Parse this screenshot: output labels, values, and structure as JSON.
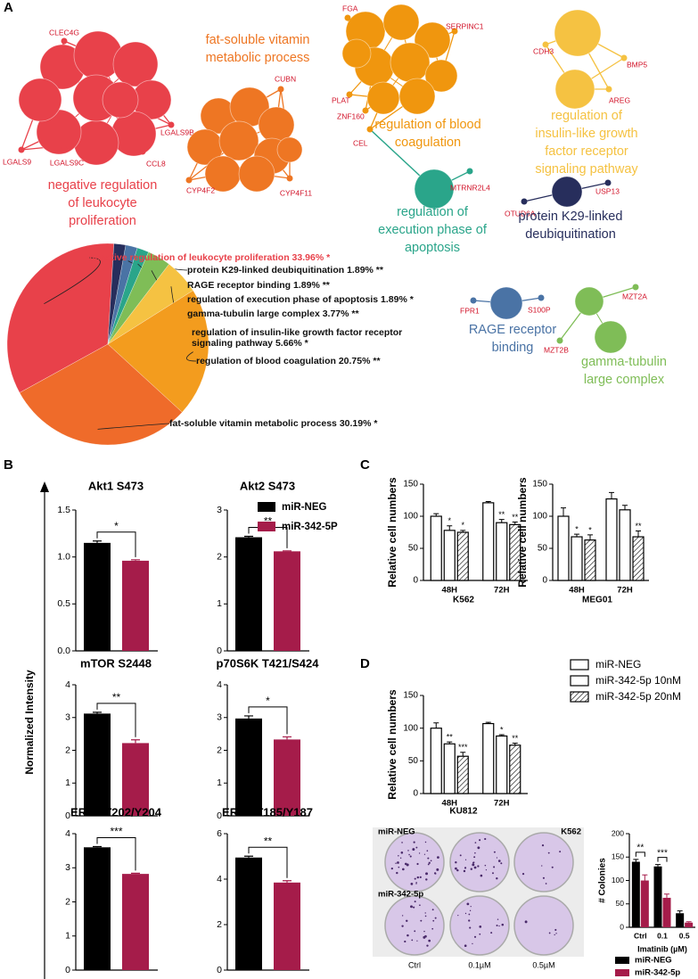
{
  "panel_labels": [
    "A",
    "B",
    "C",
    "D"
  ],
  "network": {
    "clusters": [
      {
        "label_lines": [
          "negative regulation",
          "of leukocyte",
          "proliferation"
        ],
        "color": "#e8414a",
        "genes": [
          "CLEC4G",
          "LGALS9",
          "LGALS9B",
          "LGALS9C",
          "CCL8"
        ]
      },
      {
        "label_lines": [
          "fat-soluble vitamin",
          "metabolic process"
        ],
        "color": "#ee7623",
        "genes": [
          "CUBN",
          "CYP4F2",
          "CYP4F11"
        ]
      },
      {
        "label_lines": [
          "regulation of blood",
          "coagulation"
        ],
        "color": "#f0960e",
        "genes": [
          "FGA",
          "SERPINC1",
          "PLAT",
          "ZNF160",
          "CEL"
        ]
      },
      {
        "label_lines": [
          "regulation of",
          "execution phase of",
          "apoptosis"
        ],
        "color": "#2aa58a",
        "genes": [
          "MTRNR2L4"
        ]
      },
      {
        "label_lines": [
          "regulation of",
          "insulin-like growth",
          "factor receptor",
          "signaling pathway"
        ],
        "color": "#f5c242",
        "genes": [
          "CDH3",
          "BMP5",
          "AREG"
        ]
      },
      {
        "label_lines": [
          "protein K29-linked",
          "deubiquitination"
        ],
        "color": "#272e5c",
        "genes": [
          "OTUD6A",
          "USP13"
        ]
      },
      {
        "label_lines": [
          "RAGE receptor",
          "binding"
        ],
        "color": "#4a73a5",
        "genes": [
          "FPR1",
          "S100P"
        ]
      },
      {
        "label_lines": [
          "gamma-tubulin",
          "large complex"
        ],
        "color": "#7fbd57",
        "genes": [
          "MZT2A",
          "MZT2B"
        ]
      }
    ]
  },
  "chart_data": [
    {
      "type": "pie",
      "categories": [
        "negative regulation of leukocyte proliferation",
        "protein K29-linked deubiquitination",
        "RAGE receptor binding",
        "regulation of execution phase of apoptosis",
        "gamma-tubulin large complex",
        "regulation of insulin-like growth factor receptor signaling pathway",
        "regulation of blood coagulation",
        "fat-soluble vitamin metabolic process"
      ],
      "values": [
        33.96,
        1.89,
        1.89,
        1.89,
        3.77,
        5.66,
        20.75,
        30.19
      ],
      "value_labels": [
        "33.96%",
        "1.89%",
        "1.89%",
        "1.89%",
        "3.77%",
        "5.66%",
        "20.75%",
        "30.19%"
      ],
      "significance": [
        "*",
        "**",
        "**",
        "*",
        "**",
        "*",
        "**",
        "*"
      ],
      "colors": [
        "#e8414a",
        "#272e5c",
        "#4a73a5",
        "#2aa58a",
        "#7fbd57",
        "#f5c242",
        "#f39c1e",
        "#ef6b2a"
      ]
    },
    {
      "type": "bar",
      "ylabel": "Normalized Intensity",
      "series": [
        {
          "name": "miR-NEG",
          "color": "#000000"
        },
        {
          "name": "miR-342-5P",
          "color": "#a51c4a"
        }
      ],
      "panels": [
        {
          "title": "Akt1 S473",
          "values": [
            1.15,
            0.96
          ],
          "errors": [
            0.02,
            0.01
          ],
          "significance": "*",
          "ylim": [
            0,
            1.5
          ],
          "yticks": [
            {
              "value": 0,
              "label": "0.0"
            },
            {
              "value": 0.5,
              "label": "0.5"
            },
            {
              "value": 1,
              "label": "1.0"
            },
            1.5
          ]
        },
        {
          "title": "Akt2 S473",
          "values": [
            2.42,
            2.12
          ],
          "errors": [
            0.02,
            0.01
          ],
          "significance": "**",
          "ylim": [
            0,
            3
          ],
          "yticks": [
            0,
            1,
            2,
            3
          ]
        },
        {
          "title": "mTOR S2448",
          "values": [
            3.12,
            2.22
          ],
          "errors": [
            0.04,
            0.1
          ],
          "significance": "**",
          "ylim": [
            0,
            4
          ],
          "yticks": [
            0,
            1,
            2,
            3,
            4
          ]
        },
        {
          "title": "p70S6K T421/S424",
          "values": [
            2.97,
            2.33
          ],
          "errors": [
            0.08,
            0.08
          ],
          "significance": "*",
          "ylim": [
            0,
            4
          ],
          "yticks": [
            0,
            1,
            2,
            3,
            4
          ]
        },
        {
          "title": "ERK1 T202/Y204",
          "values": [
            3.6,
            2.82
          ],
          "errors": [
            0.02,
            0.02
          ],
          "significance": "***",
          "ylim": [
            0,
            4
          ],
          "yticks": [
            0,
            1,
            2,
            3,
            4
          ]
        },
        {
          "title": "ERK2 T185/Y187",
          "values": [
            4.95,
            3.85
          ],
          "errors": [
            0.06,
            0.08
          ],
          "significance": "**",
          "ylim": [
            0,
            6
          ],
          "yticks": [
            0,
            2,
            4,
            6
          ]
        }
      ]
    },
    {
      "type": "bar",
      "ylabel": "Relative cell numbers",
      "series": [
        {
          "name": "miR-NEG",
          "color": "#ffffff",
          "hatched": false
        },
        {
          "name": "miR-342-5p 10nM",
          "color": "#ffffff",
          "hatched": false
        },
        {
          "name": "miR-342-5p 20nM",
          "color": "#ffffff",
          "hatched": true
        }
      ],
      "panels": [
        {
          "xlabel": "K562",
          "categories": [
            "48H",
            "72H"
          ],
          "values": [
            [
              100,
              121
            ],
            [
              78,
              90
            ],
            [
              75,
              87
            ]
          ],
          "errors": [
            [
              4,
              2
            ],
            [
              7,
              5
            ],
            [
              3,
              4
            ]
          ],
          "significance": [
            [
              null,
              null
            ],
            [
              "*",
              "**"
            ],
            [
              "*",
              "**"
            ]
          ],
          "ylim": [
            0,
            150
          ],
          "yticks": [
            0,
            50,
            100,
            150
          ]
        },
        {
          "xlabel": "MEG01",
          "categories": [
            "48H",
            "72H"
          ],
          "values": [
            [
              100,
              127
            ],
            [
              68,
              110
            ],
            [
              63,
              68
            ]
          ],
          "errors": [
            [
              13,
              10
            ],
            [
              4,
              7
            ],
            [
              8,
              9
            ]
          ],
          "significance": [
            [
              null,
              null
            ],
            [
              "*",
              null
            ],
            [
              "*",
              "**"
            ]
          ],
          "ylim": [
            0,
            150
          ],
          "yticks": [
            0,
            50,
            100,
            150
          ]
        },
        {
          "xlabel": "KU812",
          "categories": [
            "48H",
            "72H"
          ],
          "values": [
            [
              100,
              107
            ],
            [
              76,
              88
            ],
            [
              57,
              74
            ]
          ],
          "errors": [
            [
              8,
              2
            ],
            [
              3,
              2
            ],
            [
              6,
              3
            ]
          ],
          "significance": [
            [
              null,
              null
            ],
            [
              "**",
              "*"
            ],
            [
              "***",
              "**"
            ]
          ],
          "ylim": [
            0,
            150
          ],
          "yticks": [
            0,
            50,
            100,
            150
          ]
        }
      ]
    },
    {
      "type": "bar",
      "plate_labels": {
        "rows": [
          "miR-NEG",
          "miR-342-5p"
        ],
        "cell_line": "K562",
        "columns": [
          "Ctrl",
          "0.1µM",
          "0.5µM"
        ]
      },
      "xlabel": "Imatinib (µM)",
      "ylabel": "# Colonies",
      "categories": [
        "Ctrl",
        "0.1",
        "0.5"
      ],
      "series": [
        {
          "name": "miR-NEG",
          "color": "#000000",
          "values": [
            140,
            130,
            30
          ],
          "errors": [
            5,
            4,
            5
          ]
        },
        {
          "name": "miR-342-5p",
          "color": "#a51c4a",
          "values": [
            100,
            63,
            10
          ],
          "errors": [
            12,
            8,
            2
          ]
        }
      ],
      "significance": [
        "**",
        "***",
        null
      ],
      "ylim": [
        0,
        200
      ],
      "yticks": [
        0,
        50,
        100,
        150,
        200
      ]
    }
  ]
}
